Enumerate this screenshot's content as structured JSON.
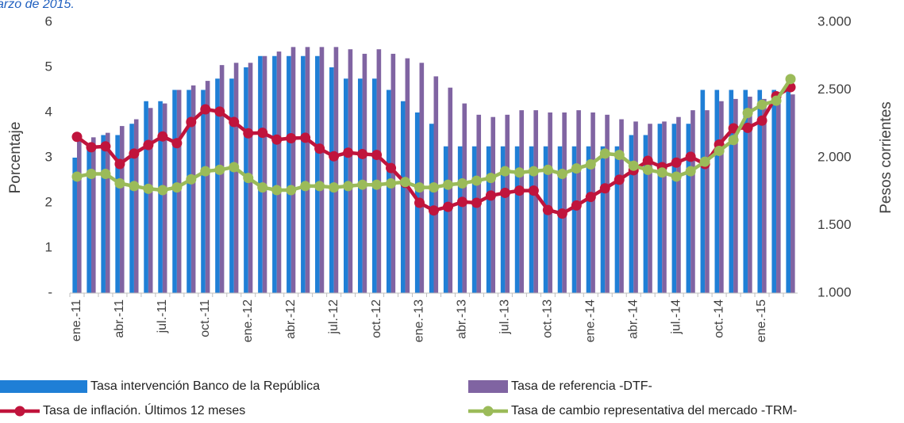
{
  "chart_data": {
    "type": "bar",
    "annotation": "arzo de 2015.",
    "ylabel": "Porcentaje",
    "y2label": "Pesos corrientes",
    "categories": [
      "ene.-11",
      null,
      null,
      "abr.-11",
      null,
      null,
      "jul.-11",
      null,
      null,
      "oct.-11",
      null,
      null,
      "ene.-12",
      null,
      null,
      "abr.-12",
      null,
      null,
      "jul.-12",
      null,
      null,
      "oct.-12",
      null,
      null,
      "ene.-13",
      null,
      null,
      "abr.-13",
      null,
      null,
      "jul.-13",
      null,
      null,
      "oct.-13",
      null,
      null,
      "ene.-14",
      null,
      null,
      "abr.-14",
      null,
      null,
      "jul.-14",
      null,
      null,
      "oct.-14",
      null,
      null,
      "ene.-15",
      null,
      null
    ],
    "ylim": [
      0,
      6
    ],
    "yticks": [
      {
        "value": 0,
        "label": "-"
      },
      1,
      2,
      3,
      4,
      5,
      6
    ],
    "y2lim": [
      1000,
      3000
    ],
    "y2ticks": [
      {
        "value": 1000,
        "label": "1.000"
      },
      {
        "value": 1500,
        "label": "1.500"
      },
      {
        "value": 2000,
        "label": "2.000"
      },
      {
        "value": 2500,
        "label": "2.500"
      },
      {
        "value": 3000,
        "label": "3.000"
      }
    ],
    "series": [
      {
        "name": "Tasa intervención Banco de la República",
        "type": "bar",
        "color": "#1f7fd6",
        "values": [
          3.0,
          3.25,
          3.5,
          3.5,
          3.75,
          4.25,
          4.25,
          4.5,
          4.5,
          4.5,
          4.75,
          4.75,
          5.0,
          5.25,
          5.25,
          5.25,
          5.25,
          5.25,
          5.0,
          4.75,
          4.75,
          4.75,
          4.5,
          4.25,
          4.0,
          3.75,
          3.25,
          3.25,
          3.25,
          3.25,
          3.25,
          3.25,
          3.25,
          3.25,
          3.25,
          3.25,
          3.25,
          3.25,
          3.25,
          3.5,
          3.5,
          3.75,
          3.75,
          3.75,
          4.5,
          4.5,
          4.5,
          4.5,
          4.5,
          4.5,
          4.5
        ]
      },
      {
        "name": "Tasa de referencia -DTF-",
        "type": "bar",
        "color": "#8064a2",
        "values": [
          3.4,
          3.45,
          3.55,
          3.7,
          3.85,
          4.1,
          4.2,
          4.5,
          4.6,
          4.7,
          5.05,
          5.1,
          5.1,
          5.25,
          5.35,
          5.45,
          5.45,
          5.45,
          5.45,
          5.4,
          5.3,
          5.4,
          5.3,
          5.2,
          5.1,
          4.8,
          4.55,
          4.2,
          3.95,
          3.9,
          3.95,
          4.05,
          4.05,
          4.0,
          4.0,
          4.05,
          4.0,
          3.95,
          3.85,
          3.8,
          3.75,
          3.8,
          3.9,
          4.05,
          4.05,
          4.25,
          4.3,
          4.35,
          4.3,
          4.4,
          4.4
        ]
      },
      {
        "name": "Tasa de inflación. Últimos 12 meses",
        "type": "line",
        "color": "#c0143c",
        "values": [
          3.46,
          3.23,
          3.25,
          2.86,
          3.09,
          3.28,
          3.47,
          3.32,
          3.79,
          4.07,
          4.02,
          3.79,
          3.54,
          3.55,
          3.4,
          3.43,
          3.44,
          3.2,
          3.03,
          3.11,
          3.08,
          3.06,
          2.77,
          2.44,
          2.0,
          1.83,
          1.91,
          2.02,
          2.0,
          2.16,
          2.22,
          2.27,
          2.27,
          1.84,
          1.76,
          1.94,
          2.13,
          2.32,
          2.51,
          2.72,
          2.93,
          2.79,
          2.89,
          3.02,
          2.86,
          3.29,
          3.65,
          3.66,
          3.82,
          4.36,
          4.56
        ]
      },
      {
        "name": "Tasa de cambio representativa del mercado -TRM-",
        "type": "line",
        "axis": "y2",
        "color": "#9bbb59",
        "values": [
          1860,
          1880,
          1880,
          1810,
          1790,
          1770,
          1760,
          1780,
          1840,
          1900,
          1910,
          1930,
          1850,
          1780,
          1760,
          1760,
          1790,
          1790,
          1780,
          1790,
          1800,
          1800,
          1810,
          1820,
          1780,
          1780,
          1800,
          1810,
          1830,
          1850,
          1900,
          1890,
          1900,
          1910,
          1880,
          1920,
          1950,
          2030,
          2020,
          1940,
          1910,
          1890,
          1860,
          1900,
          1970,
          2050,
          2130,
          2330,
          2390,
          2420,
          2580
        ]
      }
    ]
  }
}
